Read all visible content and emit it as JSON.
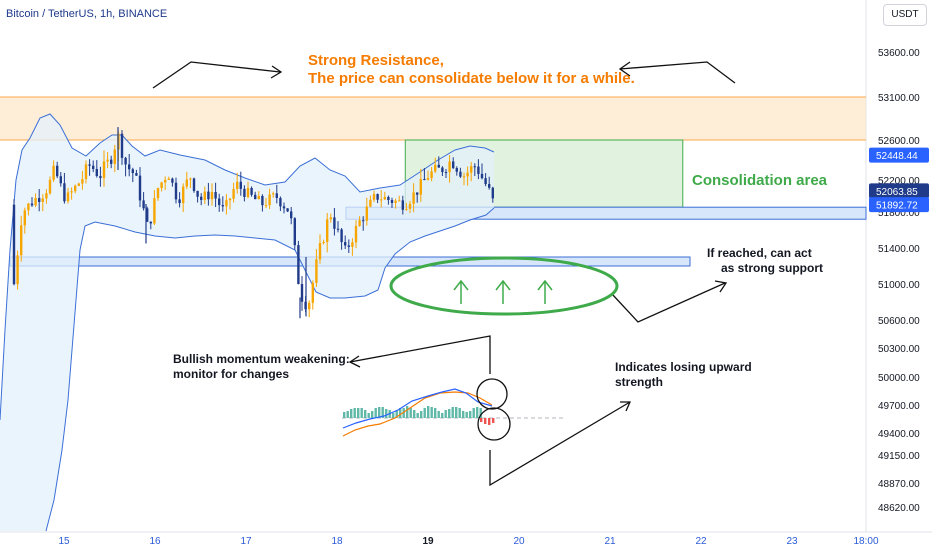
{
  "symbol_title": "Bitcoin / TetherUS, 1h, BINANCE",
  "currency": "USDT",
  "colors": {
    "up": "#f7a600",
    "down": "#1f3b8a",
    "band_line": "#3b6fd6",
    "band_fill": "#e3f0fc",
    "resistance": "#f9a84e",
    "consolidation": "#3faa4a",
    "annotation": "#f57c00",
    "tag_blue": "#2962ff"
  },
  "chart_data": {
    "type": "candlestick",
    "y_ticks": [
      53600,
      53100,
      52600,
      52200,
      51800,
      51400,
      51000,
      50600,
      50300,
      50000,
      49700,
      49400,
      49150,
      48870,
      48620
    ],
    "x_ticks": [
      "15",
      "16",
      "17",
      "18",
      "19",
      "20",
      "21",
      "22",
      "23",
      "18:00"
    ],
    "price_tags": [
      {
        "value": "52448.44",
        "color": "#2962ff"
      },
      {
        "value": "52063.85",
        "color": "#1f3b8a"
      },
      {
        "value": "51892.72",
        "color": "#2962ff"
      }
    ],
    "resistance_zone": [
      52600,
      53100
    ],
    "consolidation_zone": {
      "price": [
        51860,
        52600
      ],
      "days": [
        18.75,
        21.8
      ]
    },
    "support_zones": [
      [
        51720,
        51860
      ],
      [
        51200,
        51300
      ]
    ]
  },
  "annotations": {
    "resistance": [
      "Strong Resistance,",
      "The price can consolidate below it for a while."
    ],
    "consolidation": "Consolidation area",
    "support": [
      "If reached, can act",
      "as strong support"
    ],
    "bullish": [
      "Bullish momentum weakening:",
      "monitor for changes"
    ],
    "losing": [
      "Indicates losing upward",
      "strength"
    ]
  }
}
